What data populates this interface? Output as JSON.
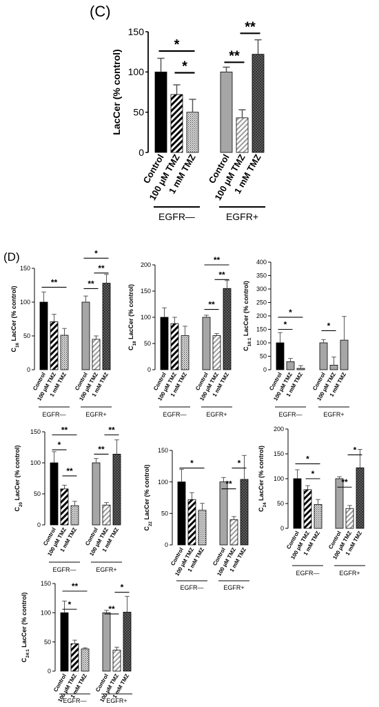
{
  "chart_data": [
    {
      "id": "C",
      "panel_label": "(C)",
      "type": "bar",
      "title": "",
      "ylabel": "LacCer (% control)",
      "ylabel_sub": "",
      "ylim": [
        0,
        150
      ],
      "yticks": [
        0,
        50,
        100,
        150
      ],
      "groups": [
        {
          "name": "EGFR—",
          "categories": [
            "Control",
            "100 μM TMZ",
            "1 mM TMZ"
          ],
          "values": [
            100,
            72,
            50
          ],
          "errors": [
            17,
            12,
            16
          ],
          "patterns": [
            "black",
            "diag",
            "dots"
          ]
        },
        {
          "name": "EGFR+",
          "categories": [
            "Control",
            "100 μM TMZ",
            "1 mM TMZ"
          ],
          "values": [
            100,
            43,
            122
          ],
          "errors": [
            6,
            10,
            18
          ],
          "patterns": [
            "gray",
            "diaggray",
            "cross"
          ]
        }
      ],
      "significance": [
        {
          "group": 0,
          "from": 0,
          "to": 2,
          "label": "*",
          "y": 126
        },
        {
          "group": 0,
          "from": 1,
          "to": 2,
          "label": "*",
          "y": 99
        },
        {
          "group": 1,
          "from": 0,
          "to": 1,
          "label": "**",
          "y": 112
        },
        {
          "group": 1,
          "from": 1,
          "to": 2,
          "label": "**",
          "y": 148
        }
      ]
    },
    {
      "id": "D1",
      "panel_label": "(D)",
      "type": "bar",
      "title": "",
      "ylabel": "LacCer (% control)",
      "ylabel_sub": "16",
      "ylim": [
        0,
        150
      ],
      "yticks": [
        0,
        50,
        100,
        150
      ],
      "groups": [
        {
          "name": "EGFR—",
          "categories": [
            "Control",
            "100 μM TMZ",
            "1 mM TMZ"
          ],
          "values": [
            100,
            71,
            51
          ],
          "errors": [
            15,
            11,
            10
          ],
          "patterns": [
            "black",
            "diag",
            "dots"
          ]
        },
        {
          "name": "EGFR+",
          "categories": [
            "Control",
            "100 μM TMZ",
            "1 mM TMZ"
          ],
          "values": [
            100,
            45,
            128
          ],
          "errors": [
            9,
            5,
            13
          ],
          "patterns": [
            "gray",
            "diaggray",
            "cross"
          ]
        }
      ],
      "significance": [
        {
          "group": 0,
          "from": 0,
          "to": 2,
          "label": "**",
          "y": 122
        },
        {
          "group": 1,
          "from": 0,
          "to": 1,
          "label": "**",
          "y": 120
        },
        {
          "group": 1,
          "from": 0,
          "to": 2,
          "label": "*",
          "y": 165
        },
        {
          "group": 1,
          "from": 1,
          "to": 2,
          "label": "**",
          "y": 143
        }
      ]
    },
    {
      "id": "D2",
      "panel_label": "",
      "type": "bar",
      "title": "",
      "ylabel": "LacCer (% control)",
      "ylabel_sub": "18",
      "ylim": [
        0,
        200
      ],
      "yticks": [
        0,
        50,
        100,
        150,
        200
      ],
      "groups": [
        {
          "name": "EGFR—",
          "categories": [
            "Control",
            "100 μM TMZ",
            "1 mM TMZ"
          ],
          "values": [
            100,
            88,
            65
          ],
          "errors": [
            18,
            12,
            18
          ],
          "patterns": [
            "black",
            "diag",
            "dots"
          ]
        },
        {
          "name": "EGFR+",
          "categories": [
            "Control",
            "100 μM TMZ",
            "1 mM TMZ"
          ],
          "values": [
            100,
            65,
            155
          ],
          "errors": [
            4,
            4,
            15
          ],
          "patterns": [
            "gray",
            "diaggray",
            "cross"
          ]
        }
      ],
      "significance": [
        {
          "group": 1,
          "from": 0,
          "to": 1,
          "label": "**",
          "y": 115
        },
        {
          "group": 1,
          "from": 1,
          "to": 2,
          "label": "**",
          "y": 172
        },
        {
          "group": 1,
          "from": 0,
          "to": 2,
          "label": "**",
          "y": 200
        }
      ]
    },
    {
      "id": "D3",
      "panel_label": "",
      "type": "bar",
      "title": "",
      "ylabel": "LacCer (% control)",
      "ylabel_sub": "18:1",
      "ylim": [
        0,
        400
      ],
      "yticks": [
        0,
        50,
        100,
        150,
        200,
        250,
        300,
        350,
        400
      ],
      "groups": [
        {
          "name": "EGFR—",
          "categories": [
            "Control",
            "100 μM TMZ",
            "1 mM TMZ"
          ],
          "values": [
            100,
            30,
            5
          ],
          "errors": [
            38,
            12,
            10
          ],
          "patterns": [
            "black",
            "gray",
            "gray"
          ]
        },
        {
          "name": "EGFR+",
          "categories": [
            "Control",
            "100 μM TMZ",
            "1 mM TMZ"
          ],
          "values": [
            100,
            17,
            110
          ],
          "errors": [
            12,
            30,
            88
          ],
          "patterns": [
            "gray",
            "gray",
            "gray"
          ]
        }
      ],
      "significance": [
        {
          "group": 0,
          "from": 0,
          "to": 1,
          "label": "*",
          "y": 150
        },
        {
          "group": 0,
          "from": 0,
          "to": 2,
          "label": "*",
          "y": 195
        },
        {
          "group": 1,
          "from": 0,
          "to": 1,
          "label": "*",
          "y": 145
        }
      ]
    },
    {
      "id": "D4",
      "panel_label": "",
      "type": "bar",
      "title": "",
      "ylabel": "LacCer (% control)",
      "ylabel_sub": "20",
      "ylim": [
        0,
        150
      ],
      "yticks": [
        0,
        50,
        100,
        150
      ],
      "groups": [
        {
          "name": "EGFR—",
          "categories": [
            "Control",
            "100 μM TMZ",
            "1 mM TMZ"
          ],
          "values": [
            100,
            58,
            31
          ],
          "errors": [
            18,
            6,
            7
          ],
          "patterns": [
            "black",
            "diag",
            "dots"
          ]
        },
        {
          "name": "EGFR+",
          "categories": [
            "Control",
            "100 μM TMZ",
            "1 mM TMZ"
          ],
          "values": [
            100,
            32,
            114
          ],
          "errors": [
            7,
            4,
            23
          ],
          "patterns": [
            "gray",
            "diaggray",
            "cross"
          ]
        }
      ],
      "significance": [
        {
          "group": 0,
          "from": 0,
          "to": 1,
          "label": "*",
          "y": 121
        },
        {
          "group": 0,
          "from": 1,
          "to": 2,
          "label": "**",
          "y": 79
        },
        {
          "group": 0,
          "from": 0,
          "to": 2,
          "label": "**",
          "y": 145
        },
        {
          "group": 1,
          "from": 0,
          "to": 1,
          "label": "**",
          "y": 114
        },
        {
          "group": 1,
          "from": 1,
          "to": 2,
          "label": "**",
          "y": 145
        }
      ]
    },
    {
      "id": "D5",
      "panel_label": "",
      "type": "bar",
      "title": "",
      "ylabel": "LacCer (% control)",
      "ylabel_sub": "22",
      "ylim": [
        0,
        150
      ],
      "yticks": [
        0,
        50,
        100,
        150
      ],
      "groups": [
        {
          "name": "EGFR—",
          "categories": [
            "Control",
            "100 μM TMZ",
            "1 mM TMZ"
          ],
          "values": [
            100,
            72,
            55
          ],
          "errors": [
            20,
            11,
            11
          ],
          "patterns": [
            "black",
            "diag",
            "dots"
          ]
        },
        {
          "name": "EGFR+",
          "categories": [
            "Control",
            "100 μM TMZ",
            "1 mM TMZ"
          ],
          "values": [
            100,
            40,
            104
          ],
          "errors": [
            7,
            5,
            38
          ],
          "patterns": [
            "gray",
            "diaggray",
            "cross"
          ]
        }
      ],
      "significance": [
        {
          "group": 0,
          "from": 0,
          "to": 2,
          "label": "*",
          "y": 122
        },
        {
          "group": 1,
          "from": 0,
          "to": 1,
          "label": "**",
          "y": 89
        },
        {
          "group": 1,
          "from": 1,
          "to": 2,
          "label": "*",
          "y": 122
        }
      ]
    },
    {
      "id": "D6",
      "panel_label": "",
      "type": "bar",
      "title": "",
      "ylabel": "LacCer (% control)",
      "ylabel_sub": "24",
      "ylim": [
        0,
        200
      ],
      "yticks": [
        0,
        50,
        100,
        150,
        200
      ],
      "groups": [
        {
          "name": "EGFR—",
          "categories": [
            "Control",
            "100 μM TMZ",
            "1 mM TMZ"
          ],
          "values": [
            100,
            78,
            48
          ],
          "errors": [
            18,
            8,
            10
          ],
          "patterns": [
            "black",
            "diag",
            "dots"
          ]
        },
        {
          "name": "EGFR+",
          "categories": [
            "Control",
            "100 μM TMZ",
            "1 mM TMZ"
          ],
          "values": [
            100,
            40,
            122
          ],
          "errors": [
            4,
            6,
            37
          ],
          "patterns": [
            "gray",
            "diaggray",
            "cross"
          ]
        }
      ],
      "significance": [
        {
          "group": 0,
          "from": 0,
          "to": 2,
          "label": "*",
          "y": 130
        },
        {
          "group": 0,
          "from": 1,
          "to": 2,
          "label": "*",
          "y": 100
        },
        {
          "group": 1,
          "from": 0,
          "to": 1,
          "label": "**",
          "y": 83
        },
        {
          "group": 1,
          "from": 1,
          "to": 2,
          "label": "*",
          "y": 148
        }
      ]
    },
    {
      "id": "D7",
      "panel_label": "",
      "type": "bar",
      "title": "",
      "ylabel": "LacCer (% control)",
      "ylabel_sub": "24:1",
      "ylim": [
        0,
        150
      ],
      "yticks": [
        0,
        50,
        100,
        150
      ],
      "groups": [
        {
          "name": "EGFR—",
          "categories": [
            "Control",
            "100 μM TMZ",
            "1 mM TMZ"
          ],
          "values": [
            100,
            47,
            38
          ],
          "errors": [
            20,
            6,
            2
          ],
          "patterns": [
            "black",
            "diag",
            "dots"
          ]
        },
        {
          "name": "EGFR+",
          "categories": [
            "Control",
            "100 μM TMZ",
            "1 mM TMZ"
          ],
          "values": [
            100,
            36,
            101
          ],
          "errors": [
            4,
            5,
            27
          ],
          "patterns": [
            "gray",
            "diaggray",
            "cross"
          ]
        }
      ],
      "significance": [
        {
          "group": 0,
          "from": 0,
          "to": 1,
          "label": "*",
          "y": 106
        },
        {
          "group": 0,
          "from": 0,
          "to": 2,
          "label": "**",
          "y": 137
        },
        {
          "group": 1,
          "from": 0,
          "to": 1,
          "label": "**",
          "y": 98
        },
        {
          "group": 1,
          "from": 1,
          "to": 2,
          "label": "*",
          "y": 135
        }
      ]
    }
  ]
}
